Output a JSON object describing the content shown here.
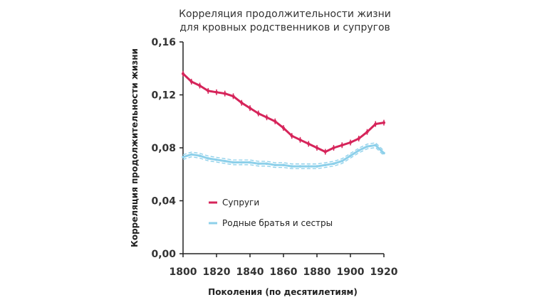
{
  "chart_data": {
    "type": "line",
    "title_lines": [
      "Корреляция продолжительности жизни",
      "для кровных родственников и супругов"
    ],
    "xlabel": "Поколения (по десятилетиям)",
    "ylabel": "Корреляция продолжительности жизни",
    "xlim": [
      1800,
      1920
    ],
    "ylim": [
      0,
      0.16
    ],
    "x_ticks": [
      "1800",
      "1820",
      "1840",
      "1860",
      "1880",
      "1900",
      "1920"
    ],
    "y_ticks": [
      "0,00",
      "0,04",
      "0,08",
      "0,12",
      "0,16"
    ],
    "x_tick_values": [
      1800,
      1820,
      1840,
      1860,
      1880,
      1900,
      1920
    ],
    "y_tick_values": [
      0,
      0.04,
      0.08,
      0.12,
      0.16
    ],
    "grid": false,
    "legend_position": "center-left",
    "series": [
      {
        "name": "Супруги",
        "color": "#d6245a",
        "points": [
          [
            1800,
            0.136
          ],
          [
            1805,
            0.13
          ],
          [
            1810,
            0.127
          ],
          [
            1815,
            0.123
          ],
          [
            1820,
            0.122
          ],
          [
            1825,
            0.121
          ],
          [
            1830,
            0.119
          ],
          [
            1835,
            0.114
          ],
          [
            1840,
            0.11
          ],
          [
            1845,
            0.106
          ],
          [
            1850,
            0.103
          ],
          [
            1855,
            0.1
          ],
          [
            1860,
            0.095
          ],
          [
            1865,
            0.089
          ],
          [
            1870,
            0.086
          ],
          [
            1875,
            0.083
          ],
          [
            1880,
            0.08
          ],
          [
            1885,
            0.077
          ],
          [
            1890,
            0.08
          ],
          [
            1895,
            0.082
          ],
          [
            1900,
            0.084
          ],
          [
            1905,
            0.087
          ],
          [
            1910,
            0.092
          ],
          [
            1915,
            0.098
          ],
          [
            1920,
            0.099
          ]
        ]
      },
      {
        "name": "Родные братья и сестры",
        "color": "#8dd0ea",
        "points": [
          [
            1800,
            0.073
          ],
          [
            1805,
            0.075
          ],
          [
            1810,
            0.074
          ],
          [
            1815,
            0.072
          ],
          [
            1820,
            0.071
          ],
          [
            1825,
            0.07
          ],
          [
            1830,
            0.069
          ],
          [
            1835,
            0.069
          ],
          [
            1840,
            0.069
          ],
          [
            1845,
            0.068
          ],
          [
            1850,
            0.068
          ],
          [
            1855,
            0.067
          ],
          [
            1860,
            0.067
          ],
          [
            1865,
            0.066
          ],
          [
            1870,
            0.066
          ],
          [
            1875,
            0.066
          ],
          [
            1880,
            0.066
          ],
          [
            1885,
            0.067
          ],
          [
            1890,
            0.068
          ],
          [
            1895,
            0.07
          ],
          [
            1900,
            0.074
          ],
          [
            1905,
            0.078
          ],
          [
            1910,
            0.081
          ],
          [
            1915,
            0.082
          ],
          [
            1920,
            0.076
          ]
        ]
      }
    ]
  }
}
